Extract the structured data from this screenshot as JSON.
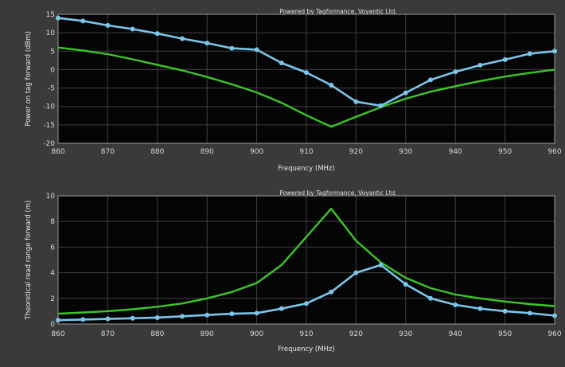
{
  "colors": {
    "panel": "#3a3a3a",
    "plot_bg": "#050505",
    "grid": "#3f3f3f",
    "measured": "#7cc6ec",
    "theoretical": "#3cc628"
  },
  "chart_data": [
    {
      "type": "line",
      "credit": "Powered by Tagformance, Voyantic Ltd.",
      "xlabel": "Frequency (MHz)",
      "ylabel": "Power on tag forward (dBm)",
      "xlim": [
        860,
        960
      ],
      "ylim": [
        -20,
        15
      ],
      "xticks": [
        860,
        870,
        880,
        890,
        900,
        910,
        920,
        930,
        940,
        950,
        960
      ],
      "yticks": [
        15,
        10,
        5,
        0,
        -5,
        -10,
        -15,
        -20
      ],
      "grid": true,
      "series": [
        {
          "color_key": "measured",
          "markers": true,
          "x": [
            860,
            865,
            870,
            875,
            880,
            885,
            890,
            895,
            900,
            905,
            910,
            915,
            920,
            925,
            930,
            935,
            940,
            945,
            950,
            955,
            960
          ],
          "y": [
            14,
            13.2,
            12,
            11,
            9.8,
            8.4,
            7.2,
            5.8,
            5.4,
            1.8,
            -0.8,
            -4.2,
            -8.7,
            -9.8,
            -6.3,
            -2.8,
            -0.6,
            1.2,
            2.7,
            4.3,
            5
          ]
        },
        {
          "color_key": "theoretical",
          "markers": false,
          "x": [
            860,
            865,
            870,
            875,
            880,
            885,
            890,
            895,
            900,
            905,
            910,
            915,
            920,
            925,
            930,
            935,
            940,
            945,
            950,
            955,
            960
          ],
          "y": [
            6,
            5.2,
            4.2,
            2.8,
            1.3,
            -0.2,
            -2,
            -4,
            -6.2,
            -9,
            -12.4,
            -15.5,
            -12.8,
            -10.2,
            -7.9,
            -6,
            -4.5,
            -3.1,
            -1.9,
            -0.9,
            0
          ]
        }
      ]
    },
    {
      "type": "line",
      "credit": "Powered by Tagformance, Voyantic Ltd.",
      "xlabel": "Frequency (MHz)",
      "ylabel": "Theoretical read range forward (m)",
      "xlim": [
        860,
        960
      ],
      "ylim": [
        0,
        10
      ],
      "xticks": [
        860,
        870,
        880,
        890,
        900,
        910,
        920,
        930,
        940,
        950,
        960
      ],
      "yticks": [
        10,
        8,
        6,
        4,
        2,
        0
      ],
      "grid": true,
      "series": [
        {
          "color_key": "measured",
          "markers": true,
          "x": [
            860,
            865,
            870,
            875,
            880,
            885,
            890,
            895,
            900,
            905,
            910,
            915,
            920,
            925,
            930,
            935,
            940,
            945,
            950,
            955,
            960
          ],
          "y": [
            0.3,
            0.35,
            0.4,
            0.45,
            0.5,
            0.6,
            0.7,
            0.8,
            0.85,
            1.2,
            1.6,
            2.5,
            4.0,
            4.6,
            3.1,
            2.0,
            1.5,
            1.2,
            1.0,
            0.85,
            0.65
          ]
        },
        {
          "color_key": "theoretical",
          "markers": false,
          "x": [
            860,
            865,
            870,
            875,
            880,
            885,
            890,
            895,
            900,
            905,
            910,
            915,
            920,
            925,
            930,
            935,
            940,
            945,
            950,
            955,
            960
          ],
          "y": [
            0.8,
            0.9,
            1.0,
            1.15,
            1.35,
            1.6,
            2.0,
            2.5,
            3.2,
            4.6,
            6.8,
            9.0,
            6.5,
            4.8,
            3.6,
            2.8,
            2.3,
            2.0,
            1.75,
            1.55,
            1.4
          ]
        }
      ]
    }
  ]
}
